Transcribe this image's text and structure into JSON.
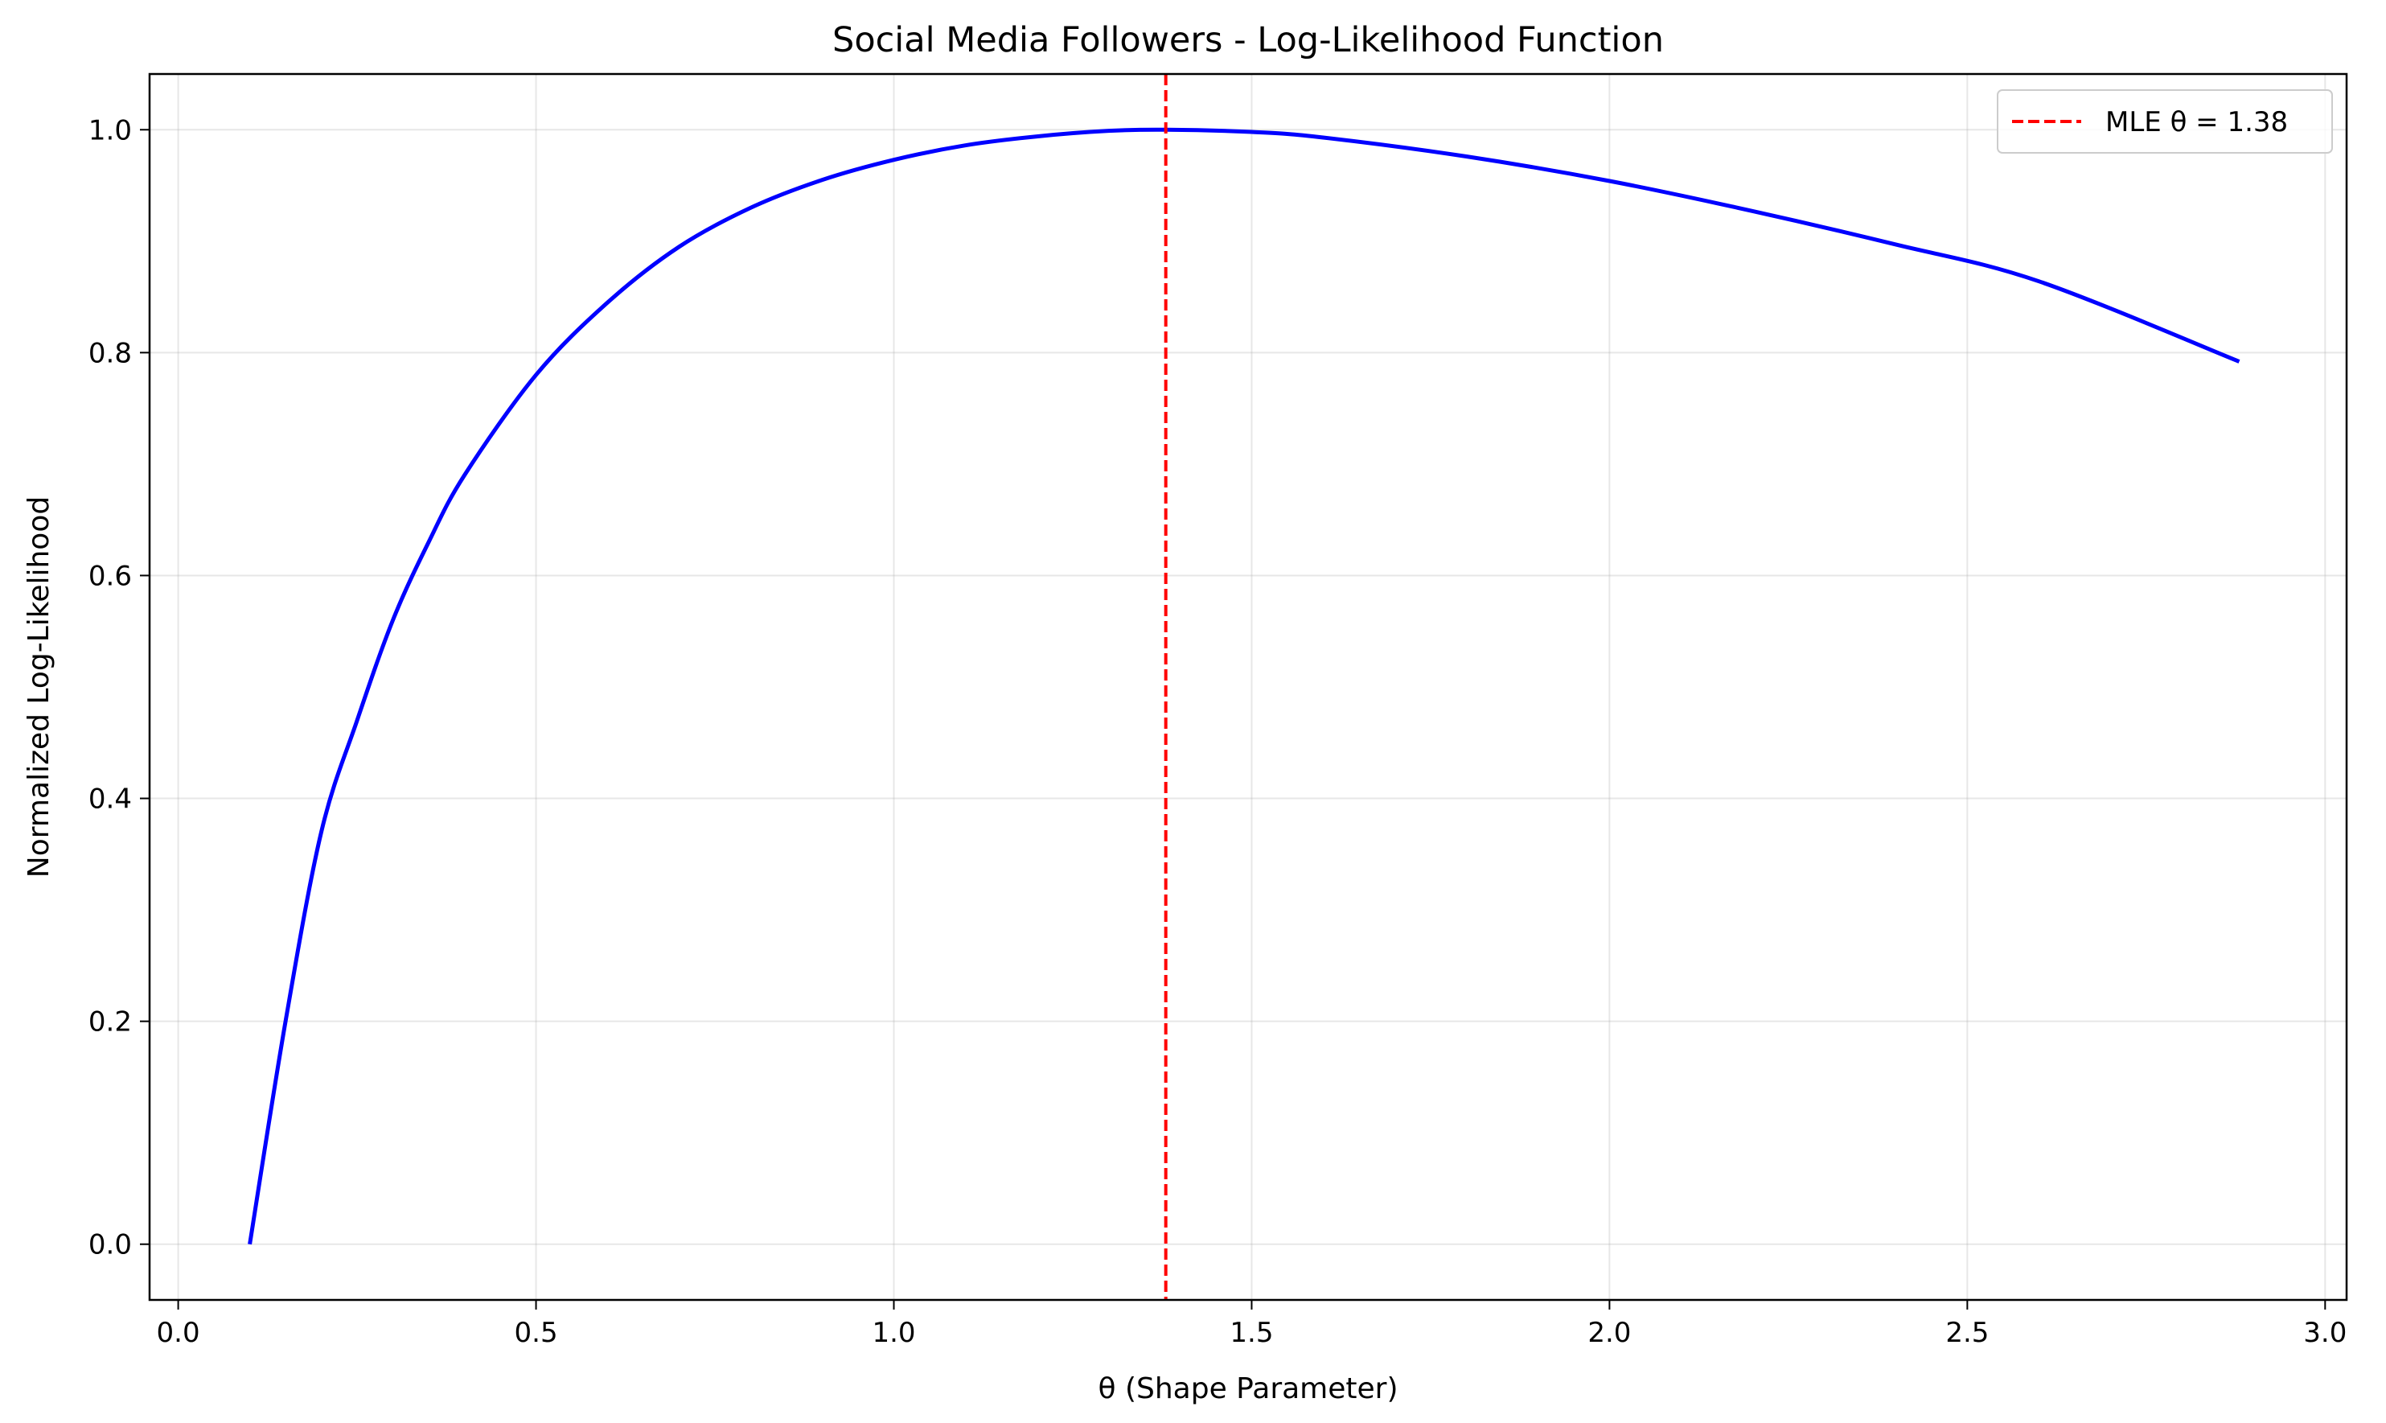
{
  "chart_data": {
    "type": "line",
    "title": "Social Media Followers - Log-Likelihood Function",
    "xlabel": "θ (Shape Parameter)",
    "ylabel": "Normalized Log-Likelihood",
    "xlim": [
      -0.04,
      3.03
    ],
    "ylim": [
      -0.05,
      1.05
    ],
    "xticks": [
      0.0,
      0.5,
      1.0,
      1.5,
      2.0,
      2.5,
      3.0
    ],
    "xtick_labels": [
      "0.0",
      "0.5",
      "1.0",
      "1.5",
      "2.0",
      "2.5",
      "3.0"
    ],
    "yticks": [
      0.0,
      0.2,
      0.4,
      0.6,
      0.8,
      1.0
    ],
    "ytick_labels": [
      "0.0",
      "0.2",
      "0.4",
      "0.6",
      "0.8",
      "1.0"
    ],
    "grid": true,
    "legend_position": "top-right",
    "series": [
      {
        "color": "#0000ff",
        "x": [
          0.1,
          0.15,
          0.2,
          0.25,
          0.3,
          0.35,
          0.4,
          0.5,
          0.6,
          0.7,
          0.8,
          0.9,
          1.0,
          1.1,
          1.2,
          1.3,
          1.38,
          1.5,
          1.6,
          1.8,
          2.0,
          2.2,
          2.4,
          2.6,
          2.88
        ],
        "y": [
          0.0,
          0.2,
          0.37,
          0.47,
          0.56,
          0.63,
          0.69,
          0.78,
          0.845,
          0.895,
          0.93,
          0.955,
          0.973,
          0.986,
          0.994,
          0.999,
          1.0,
          0.998,
          0.993,
          0.976,
          0.954,
          0.927,
          0.897,
          0.864,
          0.792
        ]
      }
    ],
    "reference_lines": [
      {
        "axis": "x",
        "value": 1.38,
        "color": "#ff0000",
        "style": "dashed",
        "label": "MLE θ = 1.38"
      }
    ]
  }
}
